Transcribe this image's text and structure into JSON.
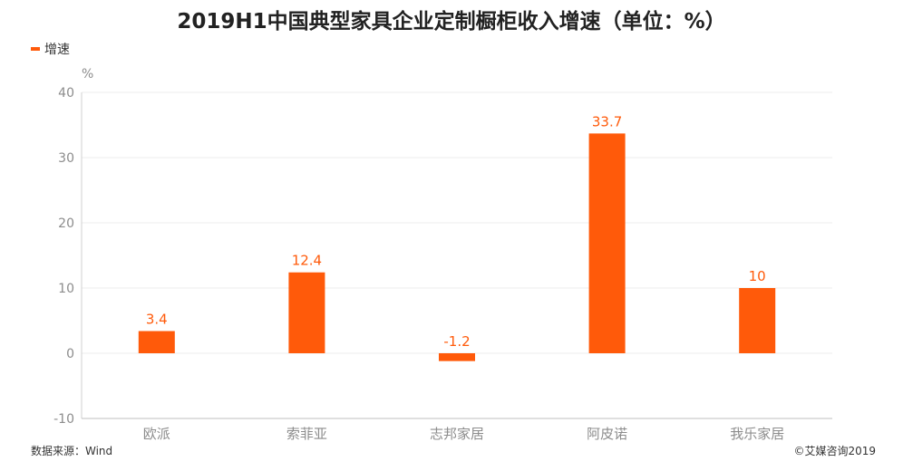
{
  "title": "2019H1中国典型家具企业定制橱柜收入增速（单位：%）",
  "legend": {
    "label": "增速"
  },
  "source": "数据来源：Wind",
  "copyright": "©艾媒咨询2019",
  "chart_data": {
    "type": "bar",
    "title": "2019H1中国典型家具企业定制橱柜收入增速（单位：%）",
    "ylabel": "%",
    "xlabel": "",
    "categories": [
      "欧派",
      "索菲亚",
      "志邦家居",
      "阿皮诺",
      "我乐家居"
    ],
    "series": [
      {
        "name": "增速",
        "values": [
          3.4,
          12.4,
          -1.2,
          33.7,
          10
        ]
      }
    ],
    "data_labels": [
      "3.4",
      "12.4",
      "-1.2",
      "33.7",
      "10"
    ],
    "ylim": [
      -10,
      40
    ],
    "yticks": [
      -10,
      0,
      10,
      20,
      30,
      40
    ],
    "grid": true,
    "legend_position": "top-left",
    "bar_color": "#ff5a0a"
  }
}
